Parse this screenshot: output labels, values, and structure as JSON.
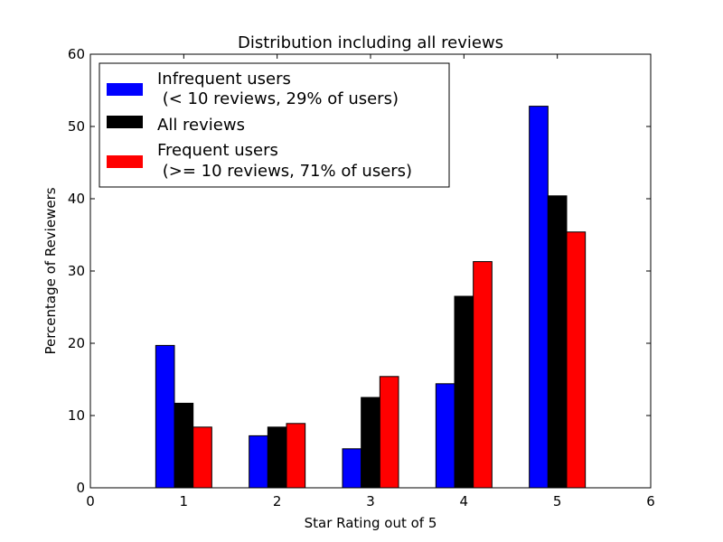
{
  "chart_data": {
    "type": "bar",
    "title": "Distribution including all reviews",
    "xlabel": "Star Rating out of 5",
    "ylabel": "Percentage of Reviewers",
    "xlim": [
      0,
      6
    ],
    "ylim": [
      0,
      60
    ],
    "xticks": [
      "0",
      "1",
      "2",
      "3",
      "4",
      "5",
      "6"
    ],
    "yticks": [
      "0",
      "10",
      "20",
      "30",
      "40",
      "50",
      "60"
    ],
    "categories": [
      1,
      2,
      3,
      4,
      5
    ],
    "series": [
      {
        "name": "Infrequent users\n (< 10 reviews, 29% of users)",
        "legend_lines": [
          "Infrequent users",
          " (< 10 reviews, 29% of users)"
        ],
        "color": "#0000ff",
        "values": [
          19.7,
          7.2,
          5.4,
          14.4,
          52.8
        ]
      },
      {
        "name": "All reviews",
        "legend_lines": [
          "All reviews"
        ],
        "color": "#000000",
        "values": [
          11.7,
          8.4,
          12.5,
          26.5,
          40.4
        ]
      },
      {
        "name": "Frequent users\n (>= 10 reviews, 71% of users)",
        "legend_lines": [
          "Frequent users",
          " (>= 10 reviews, 71% of users)"
        ],
        "color": "#ff0000",
        "values": [
          8.4,
          8.9,
          15.4,
          31.3,
          35.4
        ]
      }
    ],
    "legend_position": "upper-left",
    "grid": false
  }
}
